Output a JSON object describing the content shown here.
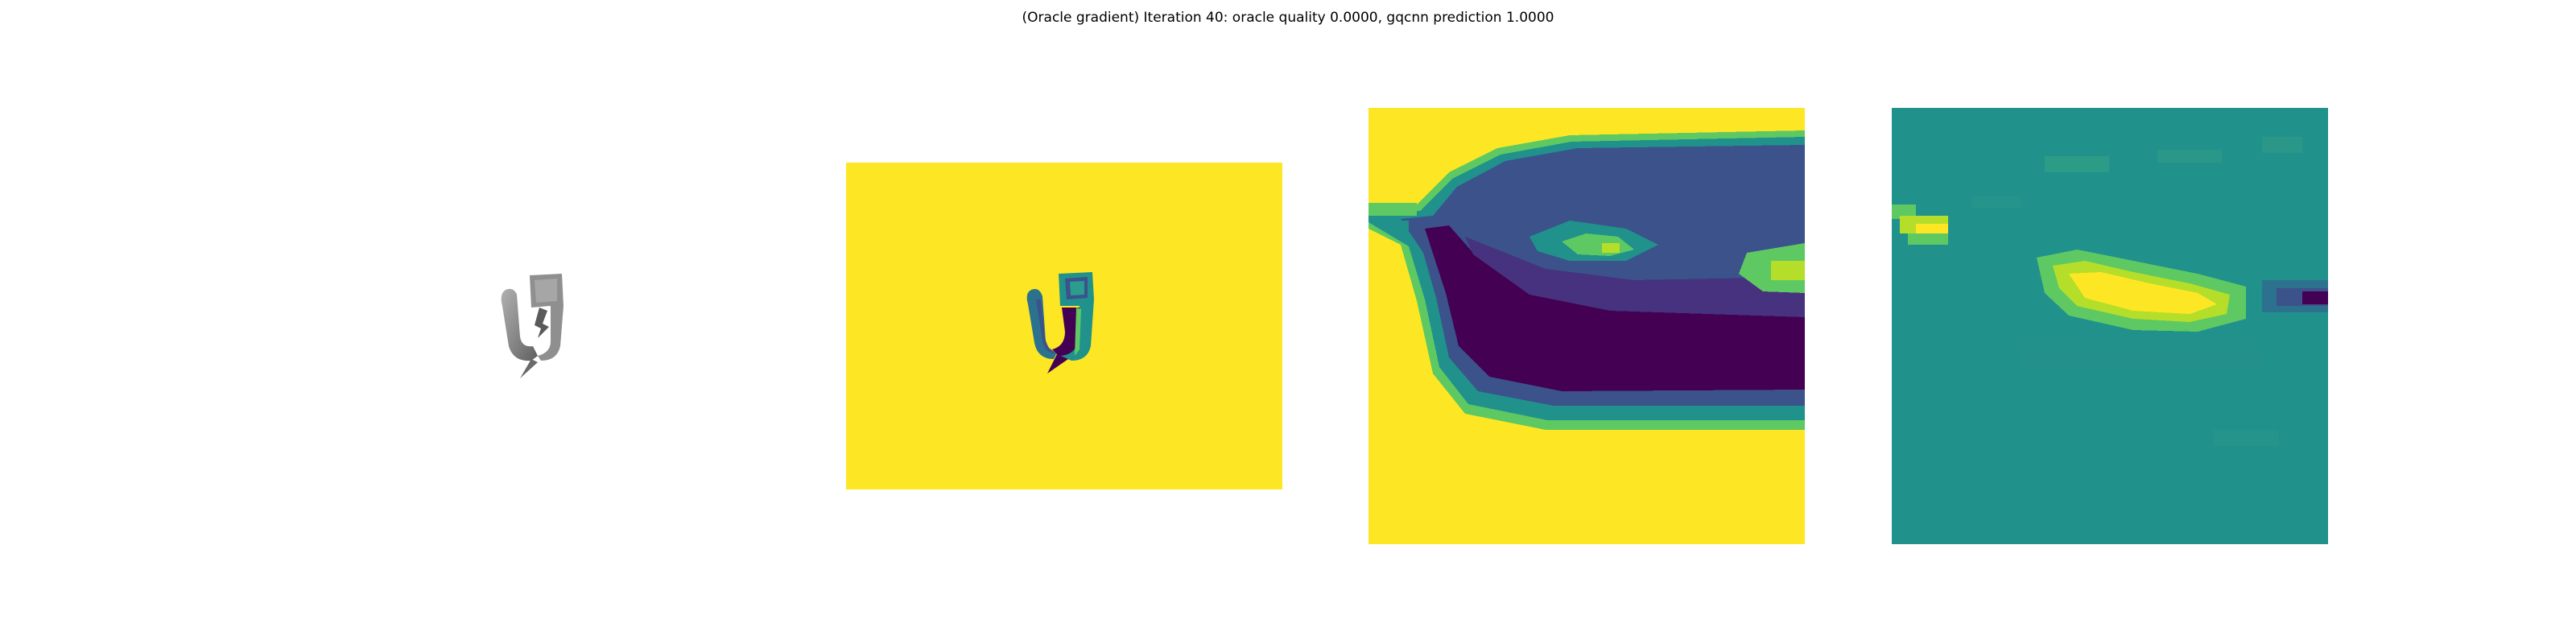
{
  "figure": {
    "title": "(Oracle gradient) Iteration 40: oracle quality 0.0000, gqcnn prediction 1.0000"
  },
  "colors": {
    "viridis_dark": "#440154",
    "viridis_blue": "#3b528b",
    "viridis_teal": "#21918c",
    "viridis_green": "#5ec962",
    "viridis_yellow": "#fde725",
    "render_gray": "#8c8c8c"
  },
  "panels": [
    {
      "id": "rendered-object",
      "colormap": "gray"
    },
    {
      "id": "depth-image",
      "colormap": "viridis"
    },
    {
      "id": "depth-crop",
      "colormap": "viridis"
    },
    {
      "id": "gradient-map",
      "colormap": "viridis"
    }
  ]
}
